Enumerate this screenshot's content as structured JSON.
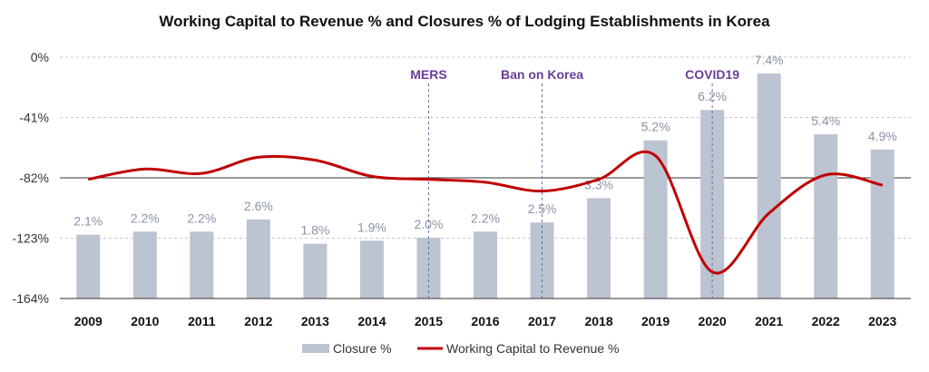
{
  "chart_data": {
    "type": "bar+line",
    "title": "Working Capital to Revenue % and Closures % of Lodging Establishments in Korea",
    "categories": [
      "2009",
      "2010",
      "2011",
      "2012",
      "2013",
      "2014",
      "2015",
      "2016",
      "2017",
      "2018",
      "2019",
      "2020",
      "2021",
      "2022",
      "2023"
    ],
    "y_ticks": [
      "0%",
      "-41%",
      "-82%",
      "-123%",
      "-164%"
    ],
    "y_tick_values": [
      0,
      -41,
      -82,
      -123,
      -164
    ],
    "ylim": [
      -164,
      0
    ],
    "series": [
      {
        "name": "Closure %",
        "type": "bar",
        "color": "#bcc3d1",
        "values": [
          2.1,
          2.2,
          2.2,
          2.6,
          1.8,
          1.9,
          2.0,
          2.2,
          2.5,
          3.3,
          5.2,
          6.2,
          7.4,
          5.4,
          4.9
        ],
        "labels": [
          "2.1%",
          "2.2%",
          "2.2%",
          "2.6%",
          "1.8%",
          "1.9%",
          "2.0%",
          "2.2%",
          "2.5%",
          "3.3%",
          "5.2%",
          "6.2%",
          "7.4%",
          "5.4%",
          "4.9%"
        ],
        "scale_max": 7.4
      },
      {
        "name": "Working Capital to Revenue %",
        "type": "line",
        "color": "#c00000",
        "values": [
          -83,
          -76,
          -79,
          -68,
          -70,
          -81,
          -83,
          -85,
          -91,
          -83,
          -67,
          -146,
          -106,
          -80,
          -87
        ]
      }
    ],
    "annotations": [
      {
        "text": "MERS",
        "category": "2015"
      },
      {
        "text": "Ban on Korea",
        "category": "2017"
      },
      {
        "text": "COVID19",
        "category": "2020"
      }
    ],
    "legend_position": "bottom",
    "grid": "horizontal-dashed"
  }
}
